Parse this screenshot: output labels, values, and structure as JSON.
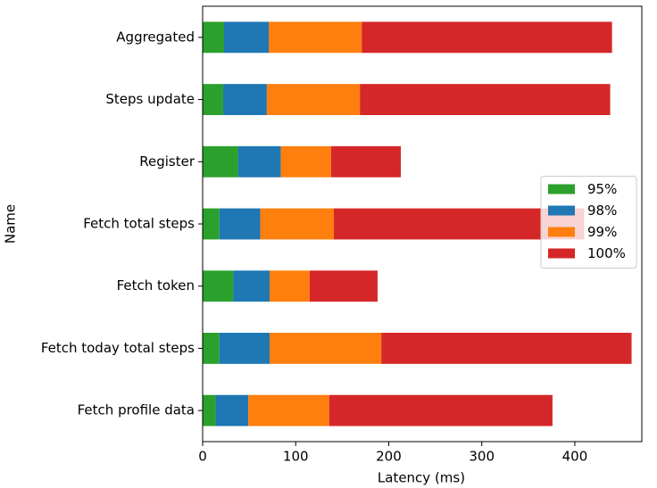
{
  "chart_data": {
    "type": "stacked_barh",
    "x_label": "Latency (ms)",
    "y_label": "Name",
    "categories": [
      "Fetch profile data",
      "Fetch today total steps",
      "Fetch token",
      "Fetch total steps",
      "Register",
      "Steps update",
      "Aggregated"
    ],
    "series": [
      {
        "name": "95%",
        "color": "#2ca02c",
        "values": [
          14,
          18,
          33,
          18,
          38,
          22,
          23
        ]
      },
      {
        "name": "98%",
        "color": "#1f77b4",
        "values": [
          35,
          54,
          39,
          44,
          46,
          47,
          48
        ]
      },
      {
        "name": "99%",
        "color": "#ff7f0e",
        "values": [
          87,
          120,
          43,
          79,
          54,
          100,
          100
        ]
      },
      {
        "name": "100%",
        "color": "#d62728",
        "values": [
          240,
          269,
          73,
          269,
          75,
          269,
          269
        ]
      }
    ],
    "xlim": [
      0,
      472
    ],
    "xticks": [
      0,
      100,
      200,
      300,
      400
    ],
    "legend": "center right"
  }
}
